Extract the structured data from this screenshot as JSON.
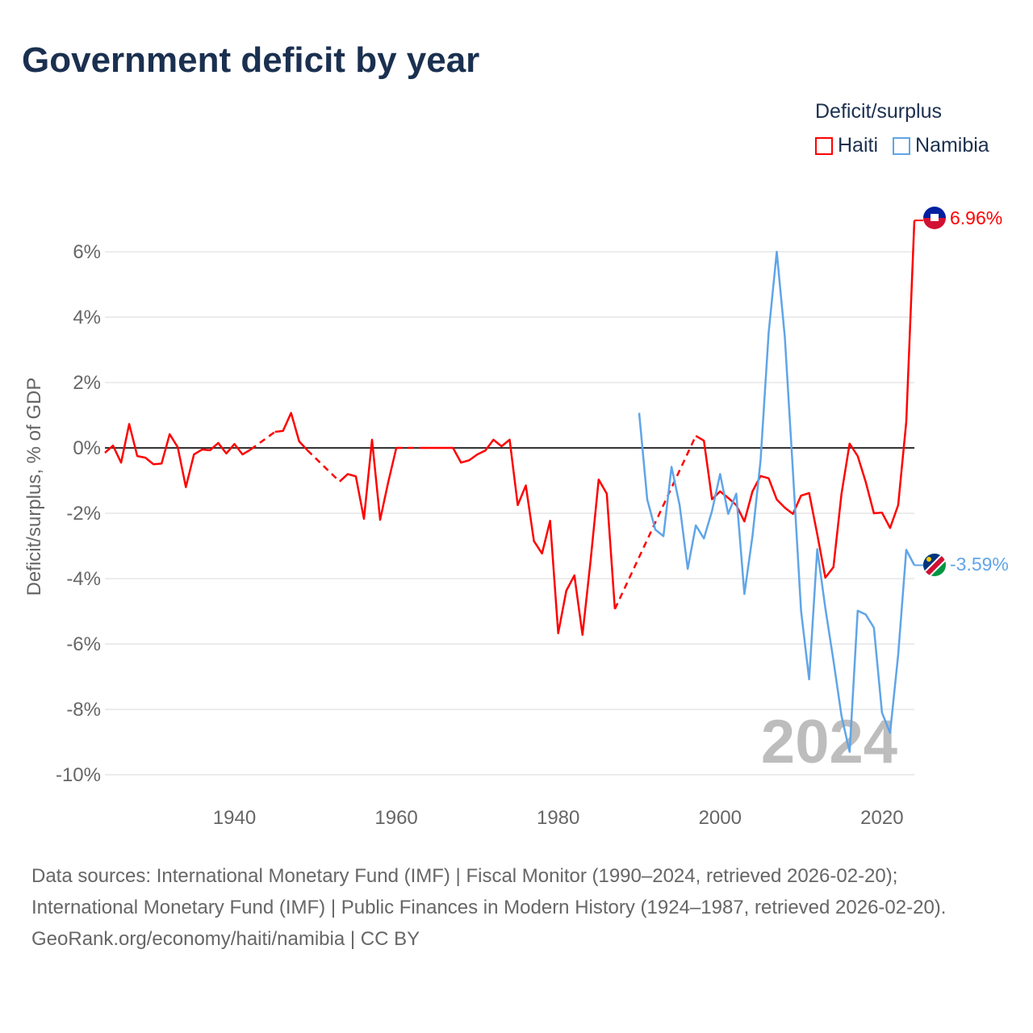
{
  "title": "Government deficit by year",
  "legend": {
    "title": "Deficit/surplus",
    "items": [
      {
        "label": "Haiti",
        "color": "#ff0000"
      },
      {
        "label": "Namibia",
        "color": "#5fa5e8"
      }
    ]
  },
  "year_watermark": "2024",
  "footer": {
    "sources": "Data sources: International Monetary Fund (IMF) | Fiscal Monitor (1990–2024, retrieved 2026-02-20); International Monetary Fund (IMF) | Public Finances in Modern History (1924–1987, retrieved 2026-02-20).",
    "credit": "GeoRank.org/economy/haiti/namibia | CC BY"
  },
  "chart_data": {
    "type": "line",
    "title": "Government deficit by year",
    "xlabel": "",
    "ylabel": "Deficit/surplus, % of GDP",
    "xlim": [
      1924,
      2024
    ],
    "ylim": [
      -10,
      7
    ],
    "xticks": [
      1940,
      1960,
      1980,
      2000,
      2020
    ],
    "yticks": [
      -10,
      -8,
      -6,
      -4,
      -2,
      0,
      2,
      4,
      6
    ],
    "ytick_labels": [
      "-10%",
      "-8%",
      "-6%",
      "-4%",
      "-2%",
      "0%",
      "2%",
      "4%",
      "6%"
    ],
    "legend_position": "top-right",
    "end_labels": {
      "Haiti": "6.96%",
      "Namibia": "-3.59%"
    },
    "series": [
      {
        "name": "Haiti",
        "color": "#ff0000",
        "start_year": 1924,
        "values": [
          -0.15,
          0.07,
          -0.45,
          0.73,
          -0.25,
          -0.3,
          -0.5,
          -0.48,
          0.42,
          0.02,
          -1.2,
          -0.2,
          -0.05,
          -0.07,
          0.15,
          -0.17,
          0.12,
          -0.2,
          -0.05,
          null,
          null,
          0.49,
          0.52,
          1.07,
          0.2,
          -0.07,
          null,
          null,
          null,
          -1.03,
          -0.8,
          -0.87,
          -2.17,
          0.25,
          -2.2,
          -1.05,
          0,
          null,
          null,
          0,
          0,
          0,
          0,
          0,
          -0.45,
          -0.38,
          -0.2,
          -0.08,
          0.25,
          0.05,
          0.25,
          -1.75,
          -1.15,
          -2.85,
          -3.23,
          -2.23,
          -5.67,
          -4.37,
          -3.9,
          -5.72,
          -3.45,
          -0.97,
          -1.4,
          -4.93,
          null,
          null,
          null,
          null,
          null,
          null,
          null,
          null,
          null,
          0.37,
          0.22,
          -1.57,
          -1.33,
          -1.53,
          -1.75,
          -2.25,
          -1.33,
          -0.86,
          -0.93,
          -1.58,
          -1.83,
          -2.02,
          -1.46,
          -1.38,
          -2.64,
          -3.97,
          -3.65,
          -1.4,
          0.13,
          -0.25,
          -1.05,
          -2.0,
          -1.98,
          -2.45,
          -1.75,
          0.8,
          6.96
        ]
      },
      {
        "name": "Namibia",
        "color": "#5fa5e8",
        "start_year": 1990,
        "values": [
          1.07,
          -1.58,
          -2.5,
          -2.7,
          -0.58,
          -1.75,
          -3.7,
          -2.37,
          -2.77,
          -1.93,
          -0.8,
          -2.02,
          -1.4,
          -4.47,
          -2.7,
          -0.38,
          3.53,
          6.0,
          3.38,
          -0.73,
          -4.98,
          -7.08,
          -3.1,
          -4.9,
          -6.5,
          -8.2,
          -9.3,
          -4.98,
          -5.1,
          -5.5,
          -8.1,
          -8.72,
          -6.33,
          -3.12,
          -3.59
        ]
      }
    ]
  }
}
